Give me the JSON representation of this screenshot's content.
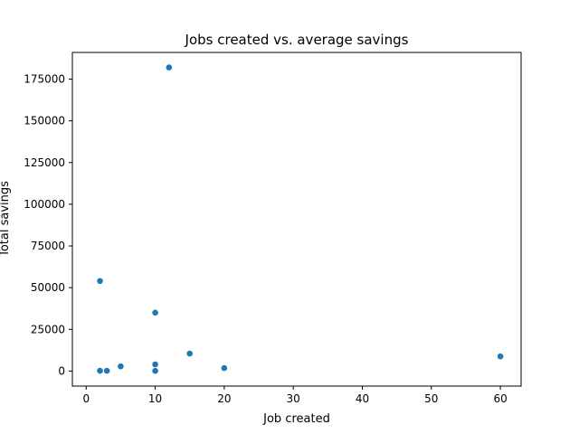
{
  "chart_data": {
    "type": "scatter",
    "title": "Jobs created vs. average savings",
    "xlabel": "Job created",
    "ylabel": "Total savings",
    "xlim": [
      -2,
      63
    ],
    "ylim": [
      -9000,
      191000
    ],
    "xticks": [
      0,
      10,
      20,
      30,
      40,
      50,
      60
    ],
    "yticks": [
      0,
      25000,
      50000,
      75000,
      100000,
      125000,
      150000,
      175000
    ],
    "grid": false,
    "series": [
      {
        "color": "#1f77b4",
        "points": [
          {
            "x": 12,
            "y": 182000
          },
          {
            "x": 2,
            "y": 54000
          },
          {
            "x": 10,
            "y": 35000
          },
          {
            "x": 15,
            "y": 10500
          },
          {
            "x": 60,
            "y": 8800
          },
          {
            "x": 10,
            "y": 4000
          },
          {
            "x": 5,
            "y": 2800
          },
          {
            "x": 20,
            "y": 1800
          },
          {
            "x": 2,
            "y": 200
          },
          {
            "x": 3,
            "y": 200
          },
          {
            "x": 10,
            "y": 100
          }
        ]
      }
    ]
  }
}
